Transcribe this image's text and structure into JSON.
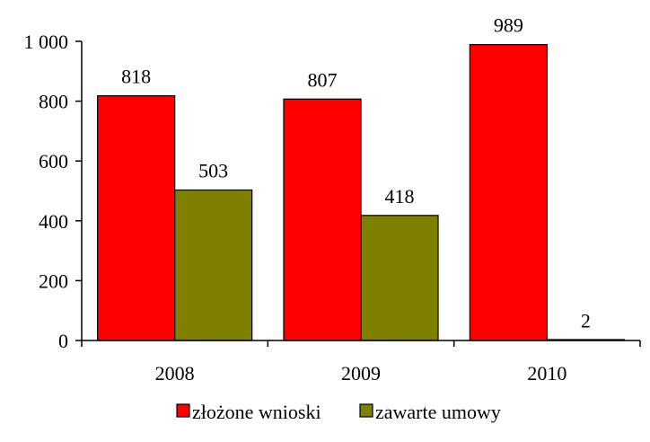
{
  "chart_data": {
    "type": "bar",
    "title": "",
    "xlabel": "",
    "ylabel": "",
    "categories": [
      "2008",
      "2009",
      "2010"
    ],
    "series": [
      {
        "name": "złożone wnioski",
        "values": [
          818,
          807,
          989
        ],
        "color": "#FF0000"
      },
      {
        "name": "zawarte umowy",
        "values": [
          503,
          418,
          2
        ],
        "color": "#808000"
      }
    ],
    "ylim": [
      0,
      1000
    ],
    "yticks": [
      0,
      200,
      400,
      600,
      800,
      1000
    ],
    "ytick_labels": [
      "0",
      "200",
      "400",
      "600",
      "800",
      "1 000"
    ],
    "grid": false,
    "legend_position": "bottom-center"
  }
}
